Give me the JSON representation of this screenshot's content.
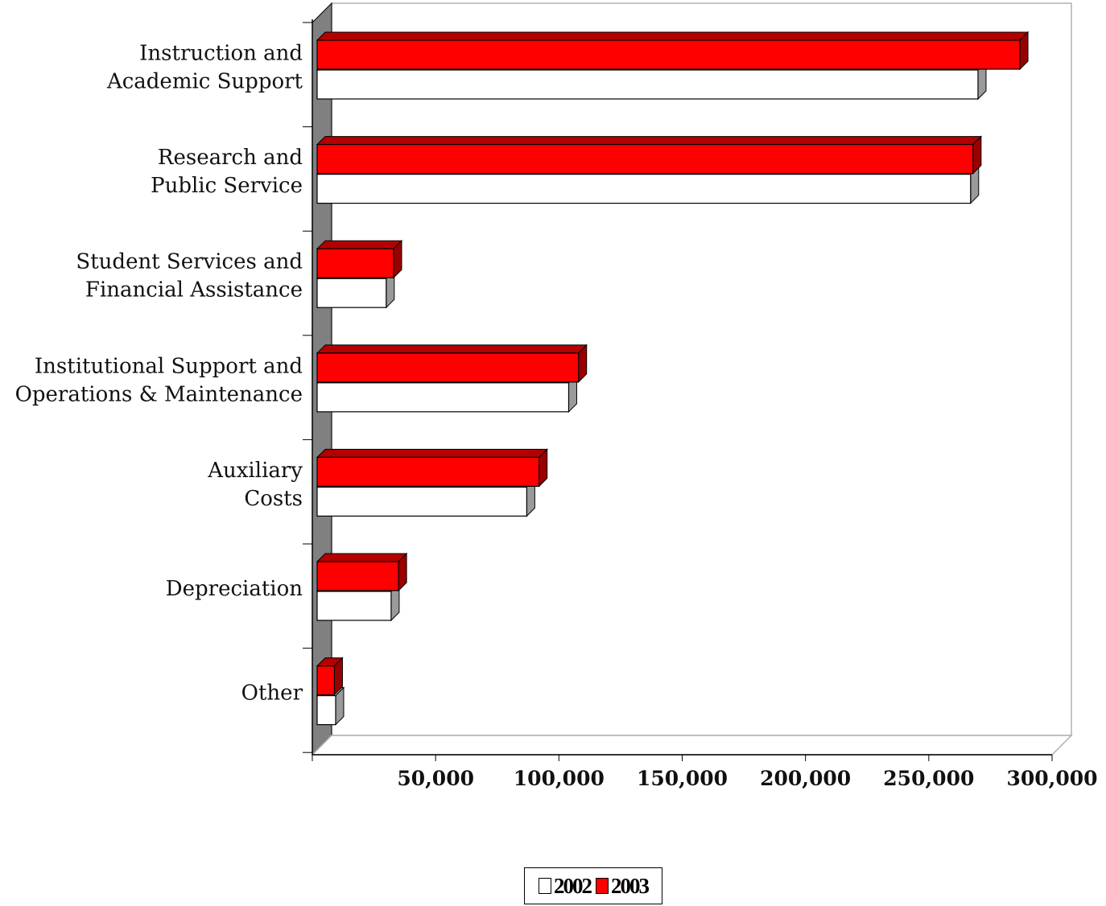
{
  "chart_data": {
    "type": "bar",
    "orientation": "horizontal",
    "three_d": true,
    "categories": [
      [
        "Instruction and",
        "Academic Support"
      ],
      [
        "Research and",
        "Public Service"
      ],
      [
        "Student Services and",
        "Financial Assistance"
      ],
      [
        "Institutional Support and",
        "Operations & Maintenance"
      ],
      [
        "Auxiliary",
        "Costs"
      ],
      [
        "Depreciation"
      ],
      [
        "Other"
      ]
    ],
    "series": [
      {
        "name": "2002",
        "color": "#ffffff",
        "values": [
          268000,
          265000,
          28000,
          102000,
          85000,
          30000,
          7500
        ]
      },
      {
        "name": "2003",
        "color": "#ff0000",
        "values": [
          285000,
          266000,
          31000,
          106000,
          90000,
          33000,
          7000
        ]
      }
    ],
    "xlim": [
      0,
      300000
    ],
    "xticks": [
      0,
      50000,
      100000,
      150000,
      200000,
      250000,
      300000
    ],
    "xtick_labels": [
      "",
      "50,000",
      "100,000",
      "150,000",
      "200,000",
      "250,000",
      "300,000"
    ],
    "legend_position": "bottom-center",
    "grid": false
  }
}
